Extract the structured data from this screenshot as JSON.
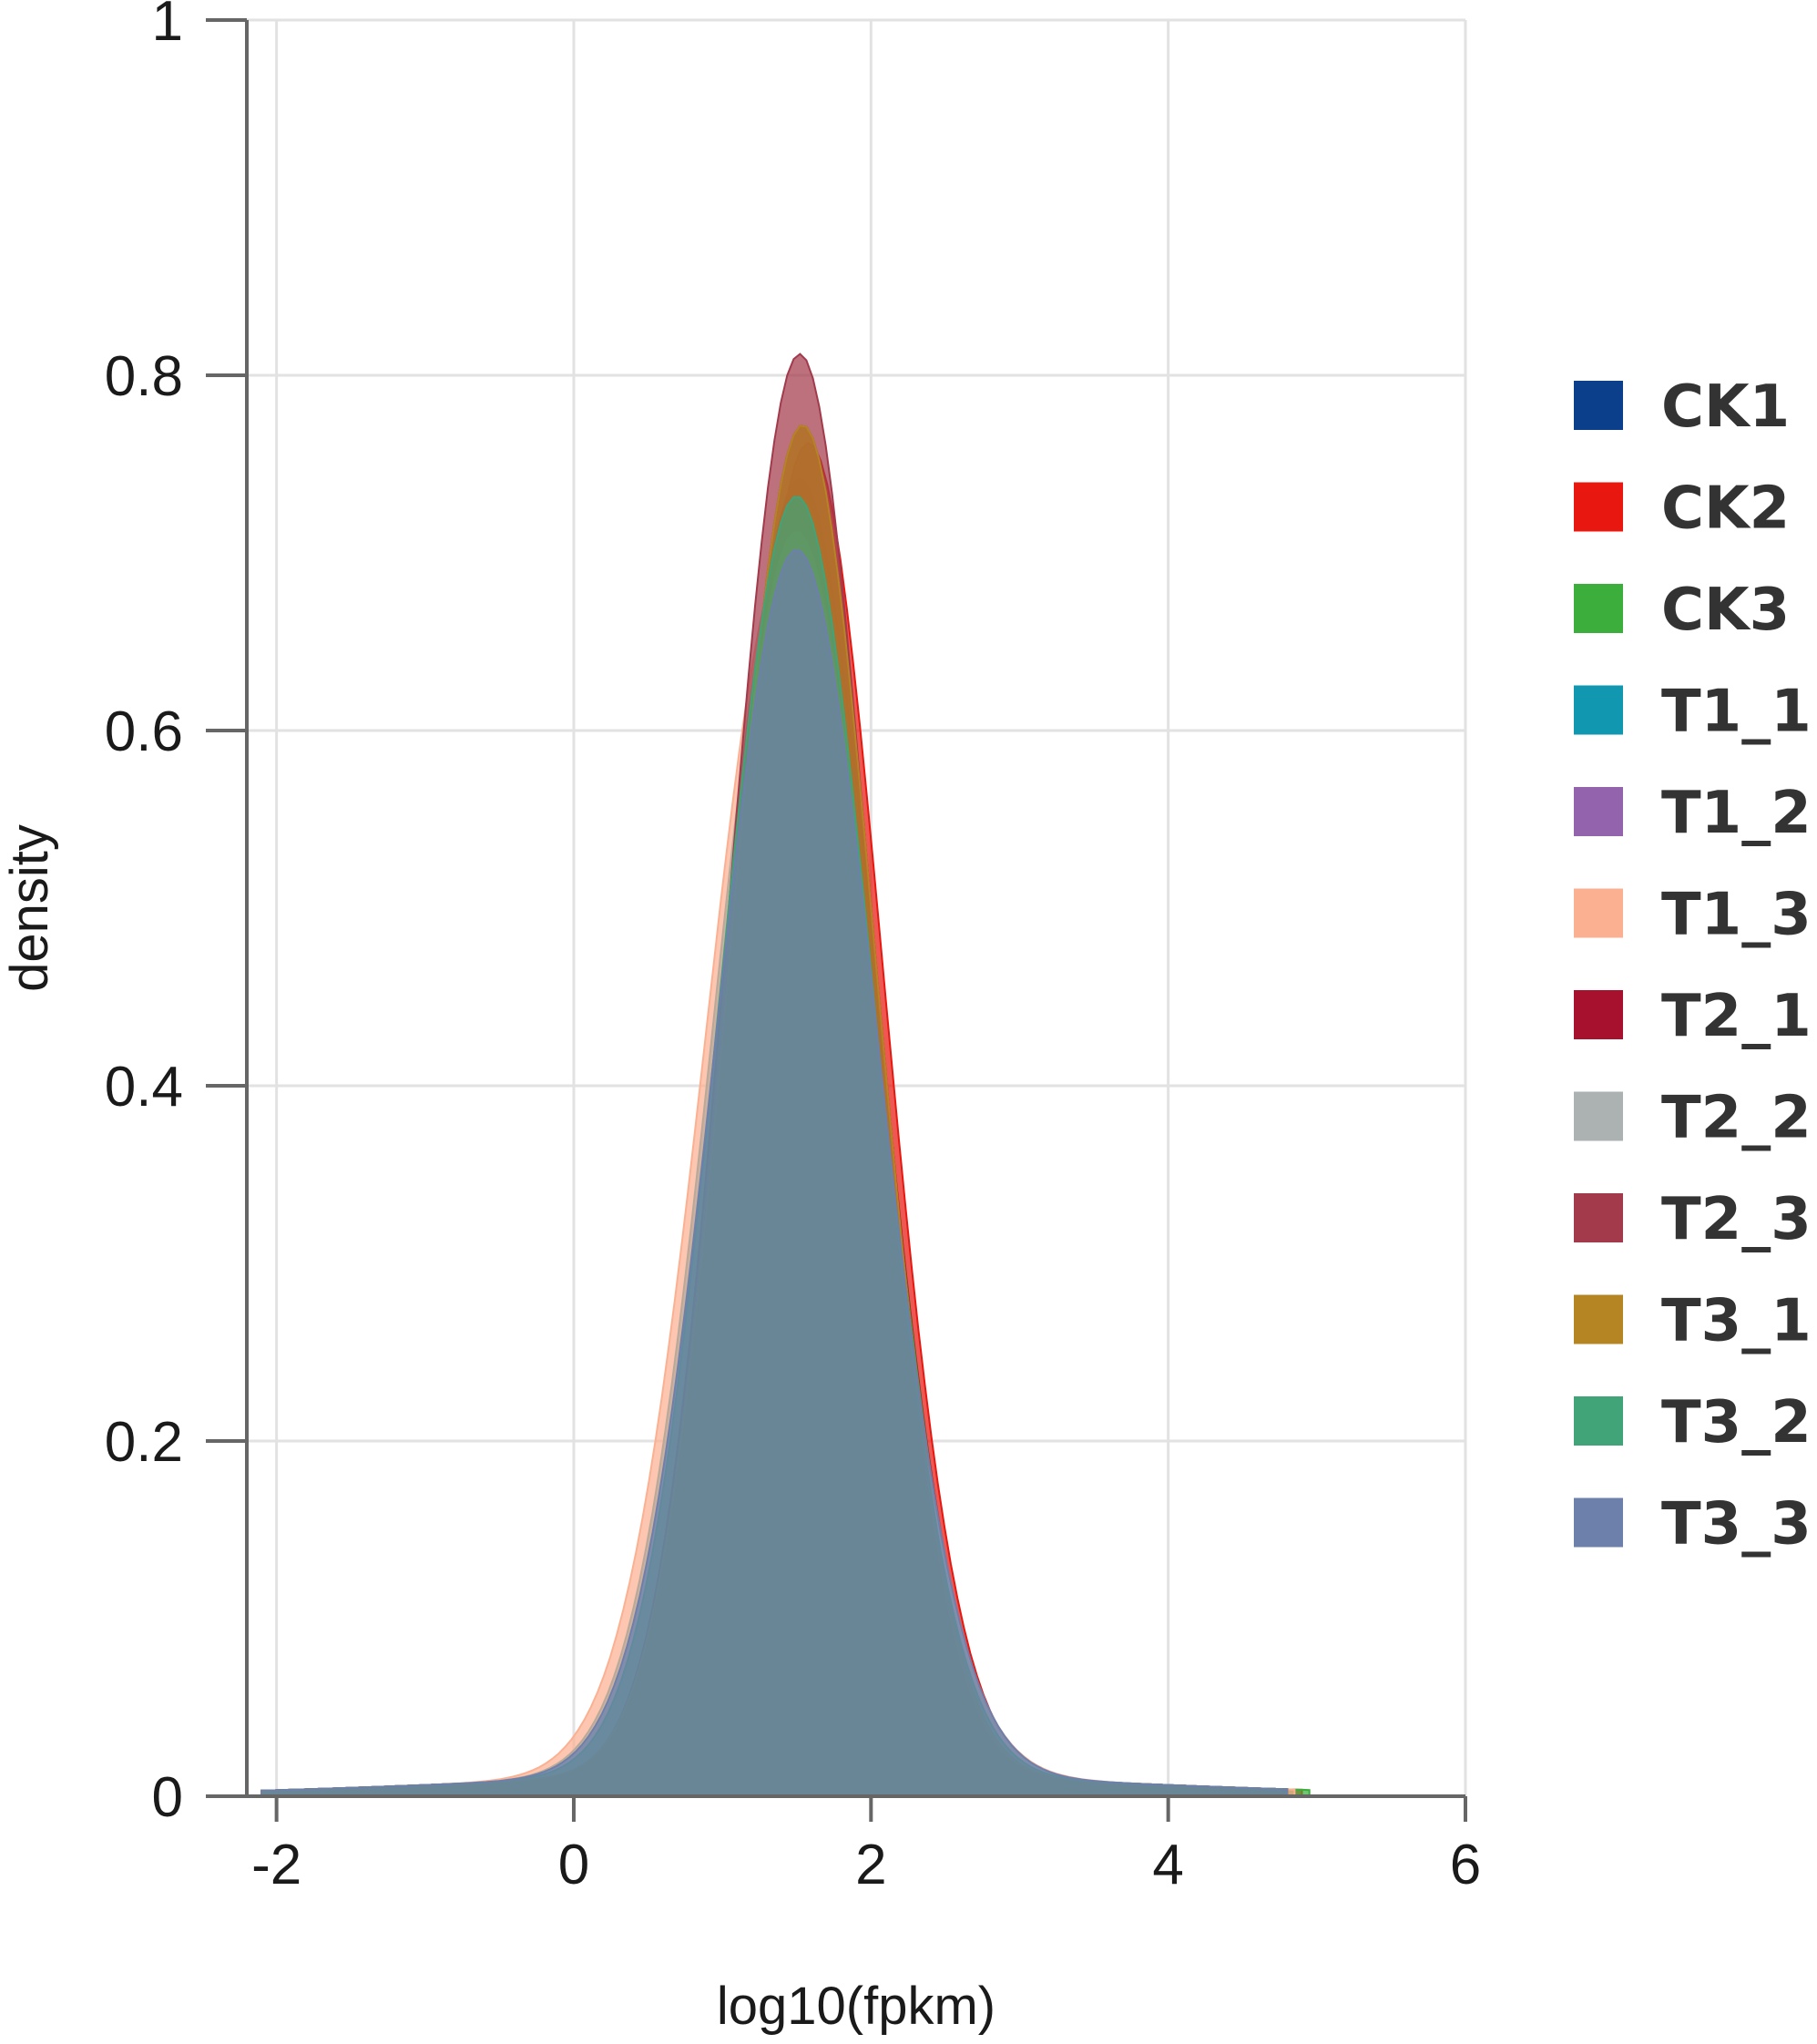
{
  "chart_data": {
    "type": "area",
    "xlabel": "log10(fpkm)",
    "ylabel": "density",
    "xlim": [
      -2.2,
      6
    ],
    "ylim": [
      0,
      1
    ],
    "x_ticks": [
      "-2",
      "0",
      "2",
      "4",
      "6"
    ],
    "y_ticks": [
      "0",
      "0.2",
      "0.4",
      "0.6",
      "0.8",
      "1"
    ],
    "grid": true,
    "legend_position": "right",
    "series": [
      {
        "name": "CK1",
        "color": "#0b3f8c",
        "peak": 0.73,
        "center": 1.52,
        "sigma": 0.52,
        "xmin": -2.1,
        "xmax": 4.8
      },
      {
        "name": "CK2",
        "color": "#e8170f",
        "peak": 0.75,
        "center": 1.58,
        "sigma": 0.5,
        "xmin": -2.1,
        "xmax": 4.9
      },
      {
        "name": "CK3",
        "color": "#3cae3c",
        "peak": 0.72,
        "center": 1.52,
        "sigma": 0.52,
        "xmin": -2.1,
        "xmax": 4.95
      },
      {
        "name": "T1_1",
        "color": "#1197b0",
        "peak": 0.7,
        "center": 1.48,
        "sigma": 0.54,
        "xmin": -2.1,
        "xmax": 4.8
      },
      {
        "name": "T1_2",
        "color": "#9363ad",
        "peak": 0.7,
        "center": 1.5,
        "sigma": 0.53,
        "xmin": -2.1,
        "xmax": 4.8
      },
      {
        "name": "T1_3",
        "color": "#fbb092",
        "peak": 0.69,
        "center": 1.45,
        "sigma": 0.56,
        "xmin": -2.1,
        "xmax": 4.85
      },
      {
        "name": "T2_1",
        "color": "#a8112e",
        "peak": 0.76,
        "center": 1.54,
        "sigma": 0.49,
        "xmin": -2.1,
        "xmax": 4.8
      },
      {
        "name": "T2_2",
        "color": "#abb2b1",
        "peak": 0.7,
        "center": 1.5,
        "sigma": 0.53,
        "xmin": -2.1,
        "xmax": 4.8
      },
      {
        "name": "T2_3",
        "color": "#a23a4b",
        "peak": 0.8,
        "center": 1.52,
        "sigma": 0.48,
        "xmin": -2.1,
        "xmax": 4.8
      },
      {
        "name": "T3_1",
        "color": "#b58523",
        "peak": 0.76,
        "center": 1.54,
        "sigma": 0.49,
        "xmin": -2.1,
        "xmax": 4.8
      },
      {
        "name": "T3_2",
        "color": "#40a478",
        "peak": 0.72,
        "center": 1.5,
        "sigma": 0.52,
        "xmin": -2.1,
        "xmax": 4.8
      },
      {
        "name": "T3_3",
        "color": "#6d80ab",
        "peak": 0.69,
        "center": 1.5,
        "sigma": 0.54,
        "xmin": -2.1,
        "xmax": 4.8
      }
    ]
  }
}
